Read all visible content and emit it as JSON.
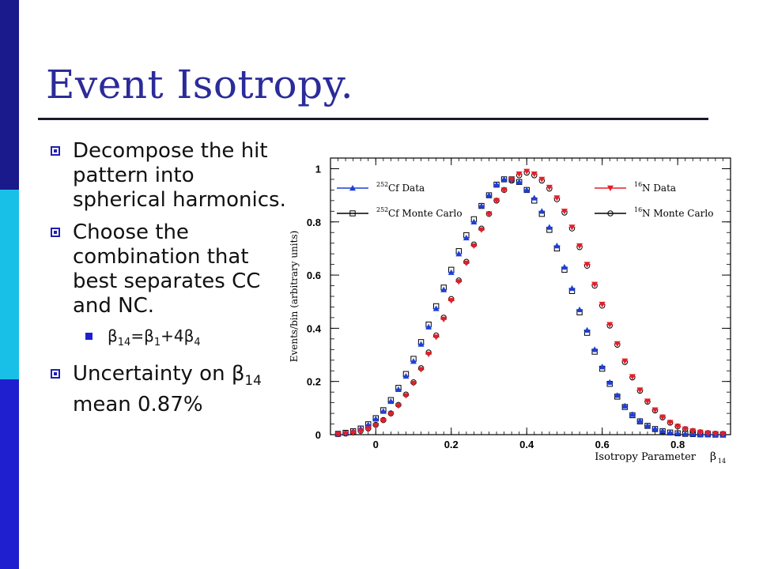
{
  "slide": {
    "title": "Event Isotropy.",
    "bullets": [
      {
        "text": "Decompose the hit pattern into spherical harmonics."
      },
      {
        "text": "Choose the combination that best separates CC and NC."
      }
    ],
    "sub_bullet": {
      "b1": "β",
      "s1": "14",
      "eq": "=",
      "b2": "β",
      "s2": "1",
      "plus": "+4",
      "b3": "β",
      "s3": "4"
    },
    "last_bullet": {
      "text": "Uncertainty on",
      "beta": "β",
      "sub": "14",
      "rest": " mean 0.87%"
    },
    "colors": {
      "title": "#2b2b9a",
      "bar_top": "#1a1a8c",
      "bar_mid": "#18c0e8",
      "bar_bottom": "#1f1fd0"
    }
  },
  "chart_data": {
    "type": "scatter",
    "ylabel": "Events/bin (arbitrary units)",
    "xlabel": "Isotropy Parameter",
    "xlabel_symbol": "β",
    "xlabel_sub": "14",
    "xlim": [
      -0.12,
      0.94
    ],
    "ylim": [
      0,
      1.04
    ],
    "xticks": [
      "0",
      "0.2",
      "0.4",
      "0.6",
      "0.8"
    ],
    "xtick_values": [
      0,
      0.2,
      0.4,
      0.6,
      0.8
    ],
    "yticks": [
      "0",
      "0.2",
      "0.4",
      "0.6",
      "0.8",
      "1"
    ],
    "ytick_values": [
      0,
      0.2,
      0.4,
      0.6,
      0.8,
      1.0
    ],
    "grid": false,
    "legend": [
      {
        "sup": "252",
        "name": "Cf Data",
        "series": 0
      },
      {
        "sup": "252",
        "name": "Cf Monte Carlo",
        "series": 1
      },
      {
        "sup": "16",
        "name": "N Data",
        "series": 2
      },
      {
        "sup": "16",
        "name": "N Monte Carlo",
        "series": 3
      }
    ],
    "x": [
      -0.1,
      -0.08,
      -0.06,
      -0.04,
      -0.02,
      0.0,
      0.02,
      0.04,
      0.06,
      0.08,
      0.1,
      0.12,
      0.14,
      0.16,
      0.18,
      0.2,
      0.22,
      0.24,
      0.26,
      0.28,
      0.3,
      0.32,
      0.34,
      0.36,
      0.38,
      0.4,
      0.42,
      0.44,
      0.46,
      0.48,
      0.5,
      0.52,
      0.54,
      0.56,
      0.58,
      0.6,
      0.62,
      0.64,
      0.66,
      0.68,
      0.7,
      0.72,
      0.74,
      0.76,
      0.78,
      0.8,
      0.82,
      0.84,
      0.86,
      0.88,
      0.9,
      0.92
    ],
    "series": [
      {
        "name": "Cf Data",
        "color": "#1f3fd8",
        "marker": "triangle-up",
        "values": [
          0.003,
          0.006,
          0.012,
          0.022,
          0.037,
          0.059,
          0.088,
          0.125,
          0.17,
          0.22,
          0.276,
          0.34,
          0.405,
          0.474,
          0.545,
          0.61,
          0.68,
          0.74,
          0.8,
          0.86,
          0.9,
          0.94,
          0.96,
          0.96,
          0.95,
          0.92,
          0.89,
          0.84,
          0.78,
          0.71,
          0.63,
          0.55,
          0.47,
          0.393,
          0.32,
          0.255,
          0.197,
          0.148,
          0.108,
          0.076,
          0.052,
          0.034,
          0.022,
          0.014,
          0.008,
          0.005,
          0.003,
          0.002,
          0.001,
          0.001,
          0.0,
          0.0
        ]
      },
      {
        "name": "Cf Monte Carlo",
        "color": "#000000",
        "marker": "open-square",
        "values": [
          0.003,
          0.007,
          0.013,
          0.023,
          0.039,
          0.062,
          0.092,
          0.13,
          0.176,
          0.228,
          0.285,
          0.348,
          0.414,
          0.483,
          0.553,
          0.62,
          0.69,
          0.75,
          0.81,
          0.86,
          0.9,
          0.94,
          0.96,
          0.96,
          0.95,
          0.92,
          0.88,
          0.83,
          0.77,
          0.7,
          0.62,
          0.54,
          0.46,
          0.383,
          0.312,
          0.248,
          0.191,
          0.143,
          0.104,
          0.073,
          0.05,
          0.033,
          0.021,
          0.013,
          0.008,
          0.005,
          0.003,
          0.002,
          0.001,
          0.001,
          0.0,
          0.0
        ]
      },
      {
        "name": "N Data",
        "color": "#e0202a",
        "marker": "triangle-down",
        "values": [
          0.002,
          0.004,
          0.007,
          0.013,
          0.022,
          0.035,
          0.053,
          0.078,
          0.109,
          0.147,
          0.193,
          0.245,
          0.303,
          0.367,
          0.434,
          0.504,
          0.575,
          0.645,
          0.71,
          0.77,
          0.83,
          0.88,
          0.92,
          0.96,
          0.98,
          0.99,
          0.98,
          0.96,
          0.93,
          0.89,
          0.84,
          0.78,
          0.71,
          0.64,
          0.565,
          0.49,
          0.414,
          0.342,
          0.277,
          0.218,
          0.168,
          0.126,
          0.093,
          0.066,
          0.046,
          0.031,
          0.021,
          0.014,
          0.009,
          0.006,
          0.004,
          0.003
        ]
      },
      {
        "name": "N Monte Carlo",
        "color": "#000000",
        "marker": "open-circle",
        "values": [
          0.002,
          0.004,
          0.008,
          0.014,
          0.023,
          0.037,
          0.055,
          0.08,
          0.112,
          0.151,
          0.197,
          0.25,
          0.309,
          0.373,
          0.44,
          0.51,
          0.58,
          0.65,
          0.715,
          0.775,
          0.83,
          0.88,
          0.92,
          0.955,
          0.975,
          0.985,
          0.975,
          0.955,
          0.925,
          0.885,
          0.835,
          0.775,
          0.705,
          0.635,
          0.56,
          0.485,
          0.41,
          0.338,
          0.273,
          0.215,
          0.165,
          0.124,
          0.091,
          0.065,
          0.045,
          0.031,
          0.021,
          0.014,
          0.009,
          0.006,
          0.004,
          0.003
        ]
      }
    ]
  }
}
